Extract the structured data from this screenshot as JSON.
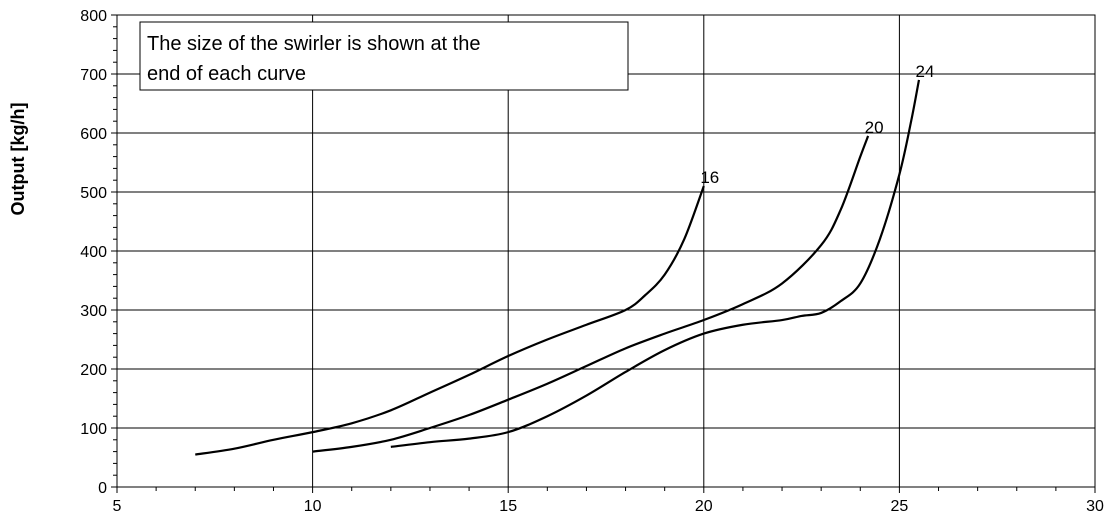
{
  "chart_data": {
    "type": "line",
    "title": "",
    "xlabel": "",
    "ylabel": "Output [kg/h]",
    "xlim": [
      5,
      30
    ],
    "ylim": [
      0,
      800
    ],
    "x_ticks": [
      5,
      10,
      15,
      20,
      25,
      30
    ],
    "y_ticks": [
      0,
      100,
      200,
      300,
      400,
      500,
      600,
      700,
      800
    ],
    "grid": true,
    "annotation": {
      "lines": [
        "The size of the swirler is shown at the",
        "end of each curve"
      ]
    },
    "series": [
      {
        "name": "16",
        "points": [
          [
            7,
            55
          ],
          [
            8,
            65
          ],
          [
            9,
            80
          ],
          [
            10,
            93
          ],
          [
            11,
            108
          ],
          [
            12,
            130
          ],
          [
            13,
            160
          ],
          [
            14,
            190
          ],
          [
            15,
            222
          ],
          [
            16,
            250
          ],
          [
            17,
            275
          ],
          [
            18,
            300
          ],
          [
            18.5,
            325
          ],
          [
            19,
            360
          ],
          [
            19.5,
            420
          ],
          [
            20,
            510
          ]
        ]
      },
      {
        "name": "20",
        "points": [
          [
            10,
            60
          ],
          [
            11,
            68
          ],
          [
            12,
            80
          ],
          [
            13,
            100
          ],
          [
            14,
            122
          ],
          [
            15,
            148
          ],
          [
            16,
            175
          ],
          [
            17,
            205
          ],
          [
            18,
            235
          ],
          [
            19,
            260
          ],
          [
            20,
            283
          ],
          [
            21,
            310
          ],
          [
            22,
            345
          ],
          [
            23,
            410
          ],
          [
            23.5,
            470
          ],
          [
            24,
            560
          ],
          [
            24.2,
            595
          ]
        ]
      },
      {
        "name": "24",
        "points": [
          [
            12,
            68
          ],
          [
            13,
            76
          ],
          [
            14,
            82
          ],
          [
            15,
            93
          ],
          [
            16,
            120
          ],
          [
            17,
            155
          ],
          [
            18,
            195
          ],
          [
            19,
            232
          ],
          [
            20,
            260
          ],
          [
            21,
            275
          ],
          [
            22,
            283
          ],
          [
            22.5,
            290
          ],
          [
            23,
            295
          ],
          [
            23.5,
            315
          ],
          [
            24,
            345
          ],
          [
            24.5,
            420
          ],
          [
            25,
            530
          ],
          [
            25.3,
            620
          ],
          [
            25.5,
            690
          ]
        ]
      }
    ]
  }
}
